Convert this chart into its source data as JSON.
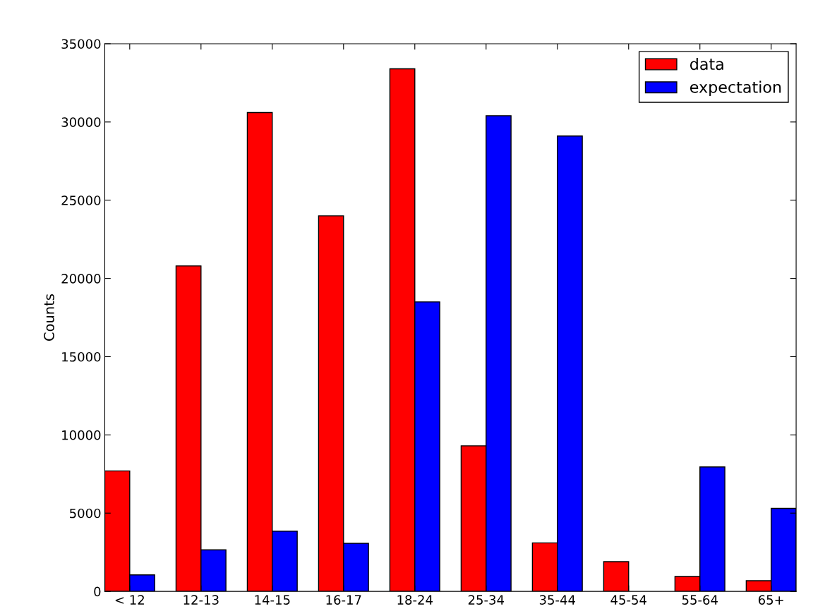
{
  "chart_data": {
    "type": "bar",
    "ylabel": "Counts",
    "categories": [
      "< 12",
      "12-13",
      "14-15",
      "16-17",
      "18-24",
      "25-34",
      "35-44",
      "45-54",
      "55-64",
      "65+"
    ],
    "series": [
      {
        "name": "data",
        "color": "#ff0000",
        "values": [
          7700,
          20800,
          30600,
          24000,
          33400,
          9300,
          3100,
          1900,
          950,
          680
        ]
      },
      {
        "name": "expectation",
        "color": "#0000ff",
        "values": [
          1050,
          2650,
          3850,
          3070,
          18500,
          30400,
          29100,
          null,
          7950,
          5300
        ]
      }
    ],
    "ylim": [
      0,
      35000
    ],
    "yticks": [
      0,
      5000,
      10000,
      15000,
      20000,
      25000,
      30000,
      35000
    ],
    "grid": false,
    "legend": "top right"
  }
}
